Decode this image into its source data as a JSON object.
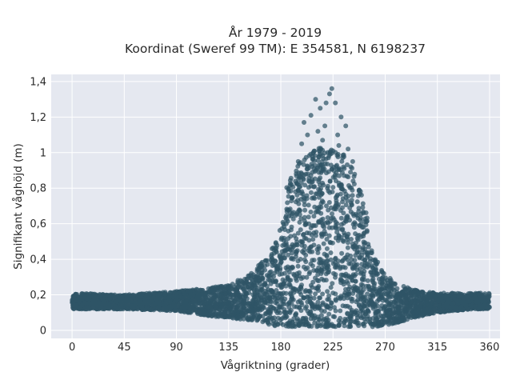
{
  "chart_data": {
    "type": "scatter",
    "title": "År 1979 - 2019",
    "subtitle": "Koordinat (Sweref 99 TM): E 354581, N 6198237",
    "xlabel": "Vågriktning (grader)",
    "ylabel": "Signifikant våghöjd (m)",
    "xlim": [
      -18,
      369
    ],
    "ylim": [
      -0.045,
      1.44
    ],
    "xticks": [
      0,
      45,
      90,
      135,
      180,
      225,
      270,
      315,
      360
    ],
    "xtick_labels": [
      "0",
      "45",
      "90",
      "135",
      "180",
      "225",
      "270",
      "315",
      "360"
    ],
    "yticks": [
      0,
      0.2,
      0.4,
      0.6,
      0.8,
      1.0,
      1.2,
      1.4
    ],
    "ytick_labels": [
      "0",
      "0,2",
      "0,4",
      "0,6",
      "0,8",
      "1",
      "1,2",
      "1,4"
    ],
    "grid": true,
    "legend": "none",
    "background_color": "#e5e8f0",
    "marker_color": "#2f5466",
    "envelope": {
      "x": [
        0,
        45,
        90,
        120,
        135,
        150,
        160,
        170,
        180,
        190,
        200,
        210,
        220,
        225,
        230,
        240,
        250,
        260,
        270,
        280,
        290,
        300,
        315,
        330,
        345,
        360
      ],
      "y_min": [
        0.12,
        0.12,
        0.11,
        0.08,
        0.07,
        0.06,
        0.05,
        0.03,
        0.02,
        0.02,
        0.02,
        0.02,
        0.02,
        0.02,
        0.02,
        0.02,
        0.02,
        0.02,
        0.03,
        0.04,
        0.06,
        0.08,
        0.1,
        0.11,
        0.12,
        0.12
      ],
      "y_max_dense": [
        0.21,
        0.2,
        0.22,
        0.24,
        0.26,
        0.3,
        0.36,
        0.44,
        0.58,
        0.75,
        0.85,
        0.88,
        0.9,
        0.9,
        0.88,
        0.82,
        0.62,
        0.42,
        0.32,
        0.26,
        0.24,
        0.22,
        0.21,
        0.21,
        0.21,
        0.21
      ]
    },
    "outliers": {
      "x": [
        224,
        222,
        210,
        219,
        227,
        206,
        214,
        232,
        236,
        200,
        218,
        229,
        212,
        203,
        216,
        238,
        198,
        225,
        230,
        208,
        221,
        242,
        195,
        234
      ],
      "y": [
        1.36,
        1.33,
        1.3,
        1.28,
        1.28,
        1.21,
        1.25,
        1.2,
        1.15,
        1.17,
        1.15,
        1.1,
        1.12,
        1.1,
        1.07,
        1.02,
        1.05,
        1.01,
        1.04,
        1.0,
        0.97,
        0.95,
        0.95,
        0.92
      ]
    }
  }
}
